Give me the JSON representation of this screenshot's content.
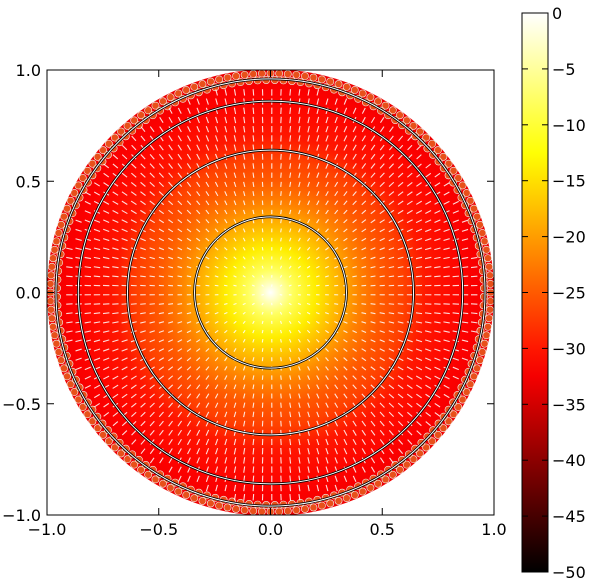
{
  "chart_data": {
    "type": "heatmap",
    "title": "",
    "xlabel": "",
    "ylabel": "",
    "xlim": [
      -1.0,
      1.0
    ],
    "ylim": [
      -1.0,
      1.0
    ],
    "x_ticks": [
      "−1.0",
      "−0.5",
      "0.0",
      "0.5",
      "1.0"
    ],
    "x_tick_values": [
      -1.0,
      -0.5,
      0.0,
      0.5,
      1.0
    ],
    "y_ticks": [
      "−1.0",
      "−0.5",
      "0.0",
      "0.5",
      "1.0"
    ],
    "y_tick_values": [
      -1.0,
      -0.5,
      0.0,
      0.5,
      1.0
    ],
    "grid": false,
    "colormap": "hot",
    "colorbar": {
      "range": [
        -50,
        0
      ],
      "ticks": [
        "0",
        "−5",
        "−10",
        "−15",
        "−20",
        "−25",
        "−30",
        "−35",
        "−40",
        "−45",
        "−50"
      ],
      "tick_values": [
        0,
        -5,
        -10,
        -15,
        -20,
        -25,
        -30,
        -35,
        -40,
        -45,
        -50
      ]
    },
    "radial_profile": {
      "r": [
        0.0,
        0.1,
        0.2,
        0.3,
        0.4,
        0.5,
        0.6,
        0.7,
        0.8,
        0.9,
        1.0
      ],
      "value": [
        0,
        -8,
        -14,
        -18,
        -22,
        -25,
        -27,
        -30,
        -31,
        -32,
        -33
      ]
    },
    "contour_radii": [
      0.34,
      0.64,
      0.86,
      0.96
    ],
    "vector_color": "#ffffff",
    "outer_ring_color": "#e8501a"
  }
}
